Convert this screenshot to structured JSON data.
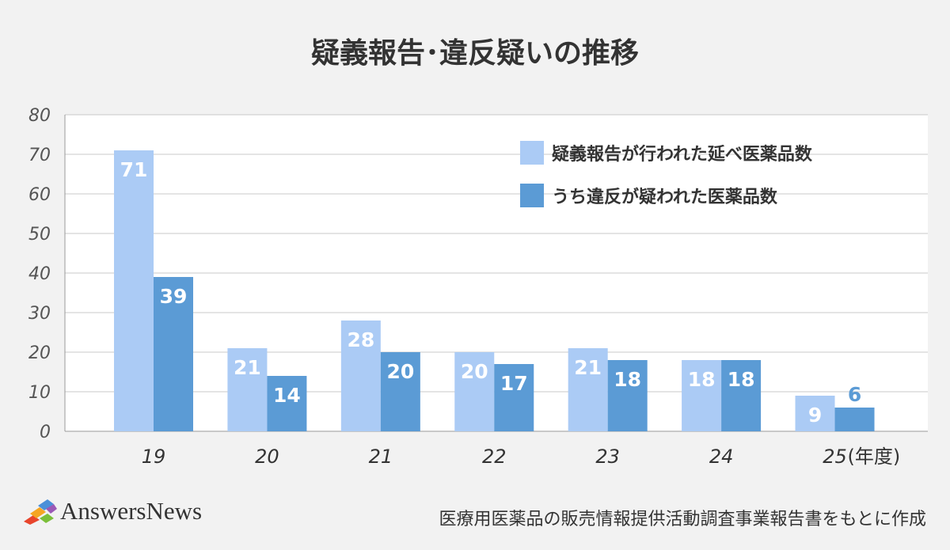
{
  "chart_data": {
    "type": "bar",
    "title": "疑義報告･違反疑いの推移",
    "categories": [
      "19",
      "20",
      "21",
      "22",
      "23",
      "24",
      "25"
    ],
    "x_unit": "(年度)",
    "series": [
      {
        "name": "疑義報告が行われた延べ医薬品数",
        "values": [
          71,
          21,
          28,
          20,
          21,
          18,
          9
        ],
        "color": "#abcbf5",
        "label_color": "#ffffff",
        "label_color_small": "#abcbf5"
      },
      {
        "name": "うち違反が疑われた医薬品数",
        "values": [
          39,
          14,
          20,
          17,
          18,
          18,
          6
        ],
        "color": "#5b9bd5",
        "label_color": "#ffffff",
        "label_color_small": "#5b9bd5"
      }
    ],
    "yticks": [
      0,
      10,
      20,
      30,
      40,
      50,
      60,
      70,
      80
    ],
    "ylim": [
      0,
      80
    ],
    "grid": true,
    "legend_position": "top-right"
  },
  "footer": {
    "logo_text": "AnswersNews",
    "source": "医療用医薬品の販売情報提供活動調査事業報告書をもとに作成"
  }
}
